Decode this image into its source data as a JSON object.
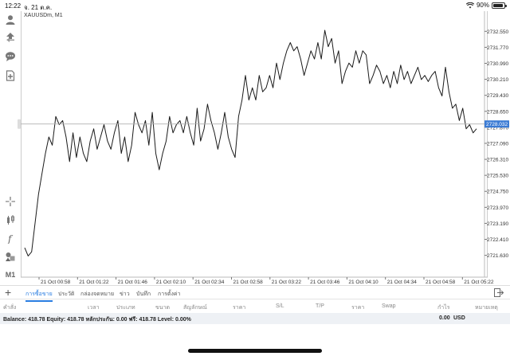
{
  "status": {
    "time": "12:22",
    "date": "จ. 21 ต.ค.",
    "battery": "90%"
  },
  "toolbar": {
    "timeframe_label": "M1"
  },
  "chart": {
    "symbol": "XAUUSDm, M1",
    "current_price": "2728.032"
  },
  "chart_data": {
    "type": "line",
    "title": "XAUUSDm, M1",
    "ylim": [
      2720.8,
      2733.3
    ],
    "grid": false,
    "y_ticks": [
      "2732.550",
      "2731.770",
      "2730.990",
      "2730.210",
      "2729.430",
      "2728.650",
      "2727.870",
      "2727.090",
      "2726.310",
      "2725.530",
      "2724.750",
      "2723.970",
      "2723.190",
      "2722.410",
      "2721.630"
    ],
    "x_ticks": [
      "21 Oct 00:58",
      "21 Oct 01:22",
      "21 Oct 01:46",
      "21 Oct 02:10",
      "21 Oct 02:34",
      "21 Oct 02:58",
      "21 Oct 03:22",
      "21 Oct 03:46",
      "21 Oct 04:10",
      "21 Oct 04:34",
      "21 Oct 04:58",
      "21 Oct 05:22"
    ],
    "current_price": 2728.032,
    "series": [
      {
        "values": [
          2722.0,
          2721.6,
          2721.8,
          2723.2,
          2724.6,
          2725.6,
          2726.6,
          2727.4,
          2727.0,
          2728.4,
          2728.0,
          2728.2,
          2727.4,
          2726.2,
          2727.6,
          2726.4,
          2727.4,
          2726.6,
          2726.2,
          2727.2,
          2727.8,
          2726.8,
          2727.4,
          2728.0,
          2727.2,
          2726.8,
          2727.6,
          2728.2,
          2726.6,
          2727.4,
          2726.2,
          2727.0,
          2728.6,
          2728.0,
          2727.6,
          2728.2,
          2727.0,
          2728.6,
          2726.6,
          2725.8,
          2726.6,
          2727.2,
          2728.4,
          2727.6,
          2728.0,
          2728.2,
          2727.6,
          2728.4,
          2727.6,
          2727.0,
          2728.8,
          2727.2,
          2727.8,
          2729.0,
          2728.2,
          2727.6,
          2726.8,
          2727.6,
          2728.6,
          2727.4,
          2726.8,
          2726.4,
          2728.4,
          2729.2,
          2730.4,
          2729.2,
          2729.8,
          2729.2,
          2730.4,
          2729.6,
          2729.8,
          2730.4,
          2729.8,
          2731.0,
          2730.2,
          2731.0,
          2731.6,
          2732.0,
          2731.6,
          2731.8,
          2731.2,
          2730.4,
          2731.0,
          2731.6,
          2731.2,
          2732.0,
          2731.2,
          2732.6,
          2731.8,
          2732.2,
          2731.0,
          2731.6,
          2730.0,
          2730.6,
          2731.0,
          2730.8,
          2731.6,
          2731.0,
          2731.6,
          2731.4,
          2730.0,
          2730.4,
          2730.9,
          2730.6,
          2730.0,
          2730.4,
          2729.8,
          2730.6,
          2730.0,
          2730.9,
          2730.2,
          2730.6,
          2730.0,
          2730.4,
          2730.8,
          2730.2,
          2730.4,
          2730.1,
          2730.4,
          2730.6,
          2729.8,
          2729.4,
          2730.8,
          2729.6,
          2728.8,
          2729.0,
          2728.2,
          2728.8,
          2727.8,
          2728.0,
          2727.6,
          2727.8
        ]
      }
    ]
  },
  "tabs": [
    "การซื้อขาย",
    "ประวัติ",
    "กล่องจดหมาย",
    "ข่าว",
    "บันทึก",
    "การตั้งค่า"
  ],
  "columns": [
    "คำสั่ง",
    "เวลา",
    "ประเภท",
    "ขนาด",
    "สัญลักษณ์",
    "ราคา",
    "S/L",
    "T/P",
    "ราคา",
    "Swap",
    "กำไร",
    "หมายเหตุ"
  ],
  "balance": {
    "text": "Balance: 418.78 Equity: 418.78 หลักประกัน: 0.00 ฟรี: 418.78 Level: 0.00%",
    "profit": "0.00",
    "currency": "USD"
  },
  "colors": {
    "accent": "#2a7de1",
    "price_tag": "#3b7bd4",
    "line": "#1a1a1a"
  }
}
